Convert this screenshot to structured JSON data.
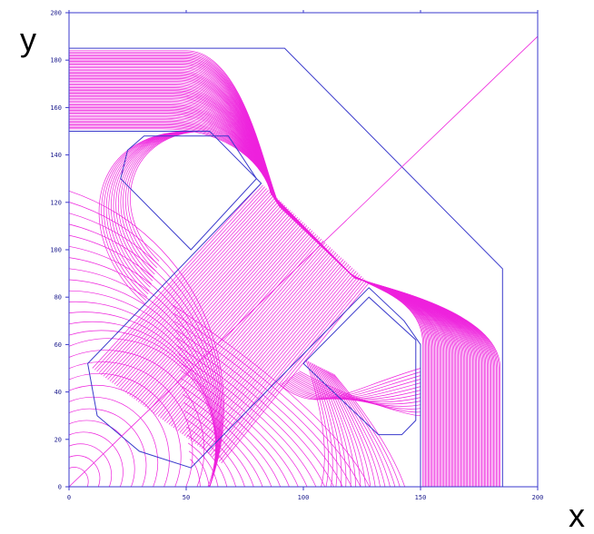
{
  "figure": {
    "x_axis_label": "x",
    "y_axis_label": "y",
    "colors": {
      "frame": "#3a3acc",
      "field_lines": "#ee22dd",
      "background": "#ffffff"
    }
  },
  "chart_data": {
    "type": "field-line-plot",
    "xlim": [
      0,
      200
    ],
    "ylim": [
      0,
      200
    ],
    "x_ticks": [
      "0",
      "50",
      "100",
      "150",
      "200"
    ],
    "y_ticks": [
      "0",
      "20",
      "40",
      "60",
      "80",
      "100",
      "120",
      "140",
      "160",
      "180",
      "200"
    ],
    "outer_boundary": [
      [
        0,
        0
      ],
      [
        0,
        150
      ],
      [
        60,
        150
      ],
      [
        0,
        150
      ],
      [
        0,
        185
      ],
      [
        92,
        185
      ],
      [
        185,
        92
      ],
      [
        185,
        0
      ],
      [
        0,
        0
      ]
    ],
    "iron_region": [
      [
        0,
        150
      ],
      [
        60,
        150
      ],
      [
        82,
        128
      ],
      [
        8,
        52
      ],
      [
        12,
        30
      ],
      [
        30,
        15
      ],
      [
        52,
        8
      ],
      [
        128,
        84
      ],
      [
        143,
        70
      ],
      [
        150,
        60
      ],
      [
        150,
        0
      ],
      [
        185,
        0
      ],
      [
        185,
        92
      ],
      [
        92,
        185
      ],
      [
        0,
        185
      ]
    ],
    "coil_upper": [
      [
        25,
        142
      ],
      [
        32,
        148
      ],
      [
        68,
        148
      ],
      [
        80,
        130
      ],
      [
        52,
        100
      ],
      [
        22,
        130
      ],
      [
        25,
        142
      ]
    ],
    "coil_lower": [
      [
        100,
        52
      ],
      [
        128,
        80
      ],
      [
        148,
        62
      ],
      [
        148,
        28
      ],
      [
        142,
        22
      ],
      [
        132,
        22
      ],
      [
        100,
        52
      ]
    ],
    "diagonal_line": [
      [
        0,
        0
      ],
      [
        200,
        190
      ]
    ],
    "field_line_count": 60
  }
}
